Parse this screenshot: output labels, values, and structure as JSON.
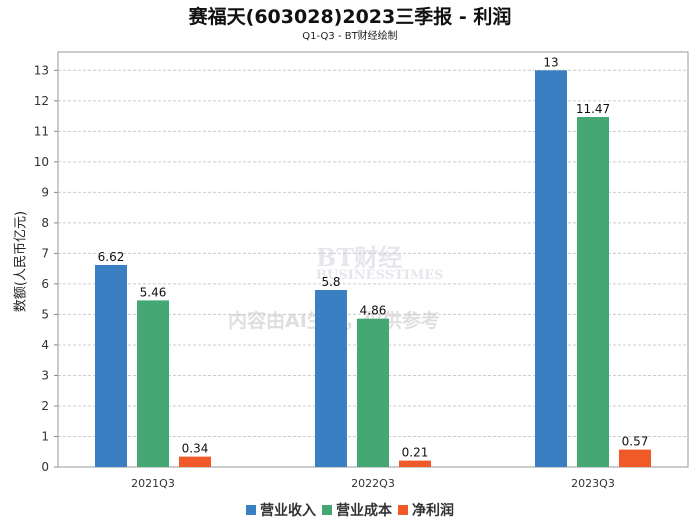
{
  "chart_data": {
    "type": "bar",
    "title": "赛福天(603028)2023三季报 - 利润",
    "subtitle": "Q1-Q3 - BT财经绘制",
    "xlabel": "",
    "ylabel": "数额(人民币亿元)",
    "ylim": [
      0,
      13.6
    ],
    "yticks": [
      0,
      1,
      2,
      3,
      4,
      5,
      6,
      7,
      8,
      9,
      10,
      11,
      12,
      13
    ],
    "grid": true,
    "legend_position": "bottom",
    "categories": [
      "2021Q3",
      "2022Q3",
      "2023Q3"
    ],
    "series": [
      {
        "name": "营业收入",
        "color": "#3a7fc1",
        "values": [
          6.62,
          5.8,
          13
        ],
        "labels": [
          "6.62",
          "5.8",
          "13"
        ]
      },
      {
        "name": "营业成本",
        "color": "#45a874",
        "values": [
          5.46,
          4.86,
          11.47
        ],
        "labels": [
          "5.46",
          "4.86",
          "11.47"
        ]
      },
      {
        "name": "净利润",
        "color": "#f05a28",
        "values": [
          0.34,
          0.21,
          0.57
        ],
        "labels": [
          "0.34",
          "0.21",
          "0.57"
        ]
      }
    ]
  },
  "watermark": {
    "brand": "BT财经",
    "brand_en": "BUSINESSTIMES",
    "notice": "内容由AI生成，仅供参考"
  }
}
